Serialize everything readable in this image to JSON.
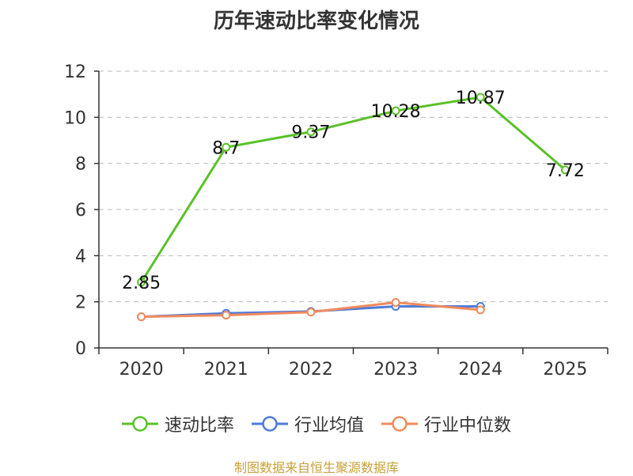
{
  "title": "历年速动比率变化情况",
  "source": "制图数据来自恒生聚源数据库",
  "colors": {
    "quick_ratio": "#5ac12a",
    "industry_mean": "#4e7bdc",
    "industry_median": "#f08a5d",
    "axis": "#333333",
    "grid": "#bbbbbb"
  },
  "chart_data": {
    "type": "line",
    "title": "历年速动比率变化情况",
    "xlabel": "",
    "ylabel": "",
    "categories": [
      "2020",
      "2021",
      "2022",
      "2023",
      "2024",
      "2025"
    ],
    "ylim": [
      0,
      12
    ],
    "yticks": [
      0,
      2,
      4,
      6,
      8,
      10,
      12
    ],
    "grid": true,
    "legend_position": "bottom",
    "series": [
      {
        "name": "速动比率",
        "color_key": "quick_ratio",
        "values": [
          2.85,
          8.7,
          9.37,
          10.28,
          10.87,
          7.72
        ],
        "labels": [
          "2.85",
          "8.7",
          "9.37",
          "10.28",
          "10.87",
          "7.72"
        ]
      },
      {
        "name": "行业均值",
        "color_key": "industry_mean",
        "values": [
          1.35,
          1.5,
          1.58,
          1.8,
          1.8,
          null
        ]
      },
      {
        "name": "行业中位数",
        "color_key": "industry_median",
        "values": [
          1.35,
          1.42,
          1.55,
          1.97,
          1.65,
          null
        ]
      }
    ]
  }
}
